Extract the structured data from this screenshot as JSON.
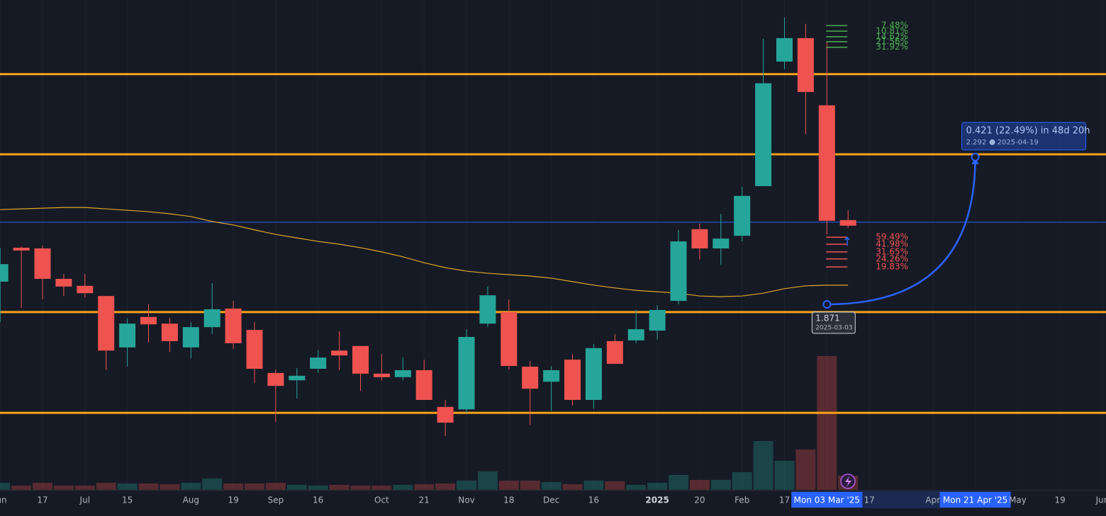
{
  "chart_data": {
    "type": "candlestick",
    "categories": [
      "Jun",
      null,
      "17",
      null,
      "Jul",
      null,
      "15",
      null,
      null,
      "Aug",
      null,
      "19",
      null,
      "Sep",
      null,
      "16",
      null,
      null,
      "Oct",
      null,
      "21",
      null,
      "Nov",
      null,
      "18",
      null,
      "Dec",
      null,
      "16",
      null,
      null,
      "2025",
      null,
      "20",
      null,
      "Feb",
      null,
      "17",
      null,
      "Mon 03 Mar '25",
      null,
      "17",
      null,
      null,
      "Apr",
      null,
      "Mon 21 Apr '25",
      null,
      "May",
      null,
      "19",
      null,
      "Jun"
    ],
    "open": [
      1.936,
      2.033,
      2.031,
      1.944,
      1.924,
      1.895,
      1.748,
      1.835,
      1.816,
      1.748,
      1.806,
      1.859,
      1.798,
      1.675,
      1.654,
      1.687,
      1.739,
      1.752,
      1.673,
      1.663,
      1.683,
      1.578,
      1.571,
      1.816,
      1.849,
      1.693,
      1.65,
      1.713,
      1.598,
      1.766,
      1.768,
      1.796,
      1.881,
      2.086,
      2.031,
      2.067,
      2.209,
      2.565,
      2.632,
      2.44,
      2.112,
      null,
      null,
      null,
      null,
      null,
      null,
      null,
      null,
      null,
      null,
      null,
      null
    ],
    "high": [
      2.033,
      2.037,
      2.039,
      1.958,
      1.958,
      1.895,
      1.831,
      1.871,
      1.833,
      1.82,
      1.932,
      1.881,
      1.82,
      1.685,
      1.689,
      1.741,
      1.794,
      1.752,
      1.729,
      1.719,
      1.713,
      1.598,
      1.8,
      1.922,
      1.885,
      1.709,
      1.695,
      1.729,
      1.758,
      1.786,
      1.855,
      1.869,
      2.084,
      2.102,
      2.13,
      2.207,
      2.63,
      2.691,
      2.673,
      2.62,
      2.14,
      null,
      null,
      null,
      null,
      null,
      null,
      null,
      null,
      null,
      null,
      null,
      null
    ],
    "low": [
      1.82,
      1.861,
      1.885,
      1.895,
      1.891,
      1.683,
      1.693,
      1.762,
      1.735,
      1.717,
      1.786,
      1.743,
      1.646,
      1.535,
      1.602,
      1.675,
      1.683,
      1.624,
      1.654,
      1.654,
      1.598,
      1.495,
      1.561,
      1.806,
      1.685,
      1.527,
      1.567,
      1.582,
      1.573,
      1.701,
      1.76,
      1.77,
      1.871,
      1.999,
      1.984,
      2.051,
      2.209,
      2.543,
      2.357,
      2.071,
      2.09,
      null,
      null,
      null,
      null,
      null,
      null,
      null,
      null,
      null,
      null,
      null,
      null
    ],
    "close": [
      1.986,
      2.025,
      1.944,
      1.922,
      1.903,
      1.739,
      1.816,
      1.814,
      1.766,
      1.806,
      1.857,
      1.76,
      1.687,
      1.638,
      1.667,
      1.719,
      1.725,
      1.673,
      1.663,
      1.683,
      1.598,
      1.533,
      1.778,
      1.897,
      1.695,
      1.63,
      1.683,
      1.598,
      1.746,
      1.701,
      1.8,
      1.855,
      2.051,
      2.031,
      2.059,
      2.181,
      2.503,
      2.632,
      2.478,
      2.11,
      2.096,
      null,
      null,
      null,
      null,
      null,
      null,
      null,
      null,
      null,
      null,
      null,
      null
    ],
    "up_color": "#26a69a",
    "down_color": "#ef5350",
    "ylim": [
      1.341,
      2.741
    ],
    "volume": [
      10,
      6,
      10,
      6,
      6,
      10,
      9,
      9,
      8,
      10,
      16,
      9,
      9,
      10,
      7,
      6,
      7,
      6,
      6,
      7,
      8,
      9,
      13,
      26,
      13,
      13,
      11,
      8,
      13,
      12,
      7,
      10,
      21,
      14,
      14,
      25,
      69,
      41,
      57,
      189,
      20,
      null,
      null,
      null,
      null,
      null,
      null,
      null,
      null,
      null,
      null,
      null,
      null
    ],
    "volume_ylim": [
      0,
      230
    ],
    "moving_average": {
      "color": "#e0a72a",
      "values": [
        2.142,
        2.144,
        2.146,
        2.148,
        2.148,
        2.144,
        2.14,
        2.136,
        2.13,
        2.122,
        2.108,
        2.098,
        2.084,
        2.071,
        2.061,
        2.051,
        2.043,
        2.033,
        2.021,
        2.007,
        1.99,
        1.976,
        1.966,
        1.96,
        1.956,
        1.952,
        1.946,
        1.936,
        1.926,
        1.918,
        1.911,
        1.907,
        1.903,
        1.895,
        1.893,
        1.895,
        1.903,
        1.916,
        1.924,
        1.926,
        1.926,
        null,
        null,
        null,
        null,
        null,
        null,
        null,
        null,
        null,
        null,
        null,
        null
      ]
    },
    "levels": {
      "color": "#f7a21b",
      "values": [
        2.529,
        2.3,
        1.849,
        1.561
      ]
    },
    "price_line": {
      "color": "#2962ff",
      "value": 2.106
    },
    "targets_up": {
      "color": "#4caf50",
      "values": [
        2.668,
        2.652,
        2.636,
        2.622,
        2.606
      ],
      "labels": [
        "7.48%",
        "10.81%",
        "14.62%",
        "21.56%",
        "31.92%"
      ]
    },
    "targets_down": {
      "color": "#ef5350",
      "values": [
        2.063,
        2.043,
        2.021,
        2.001,
        1.978
      ],
      "labels": [
        "59.49%",
        "41.98%",
        "31.65%",
        "24.26%",
        "19.83%"
      ]
    },
    "measure": {
      "color": "#2962ff",
      "start_price": 1.871,
      "start_date": "2025-03-03",
      "end_price": 2.292,
      "end_date": "2025-04-19",
      "text": "0.421 (22.49%) in 48d 20h"
    }
  }
}
